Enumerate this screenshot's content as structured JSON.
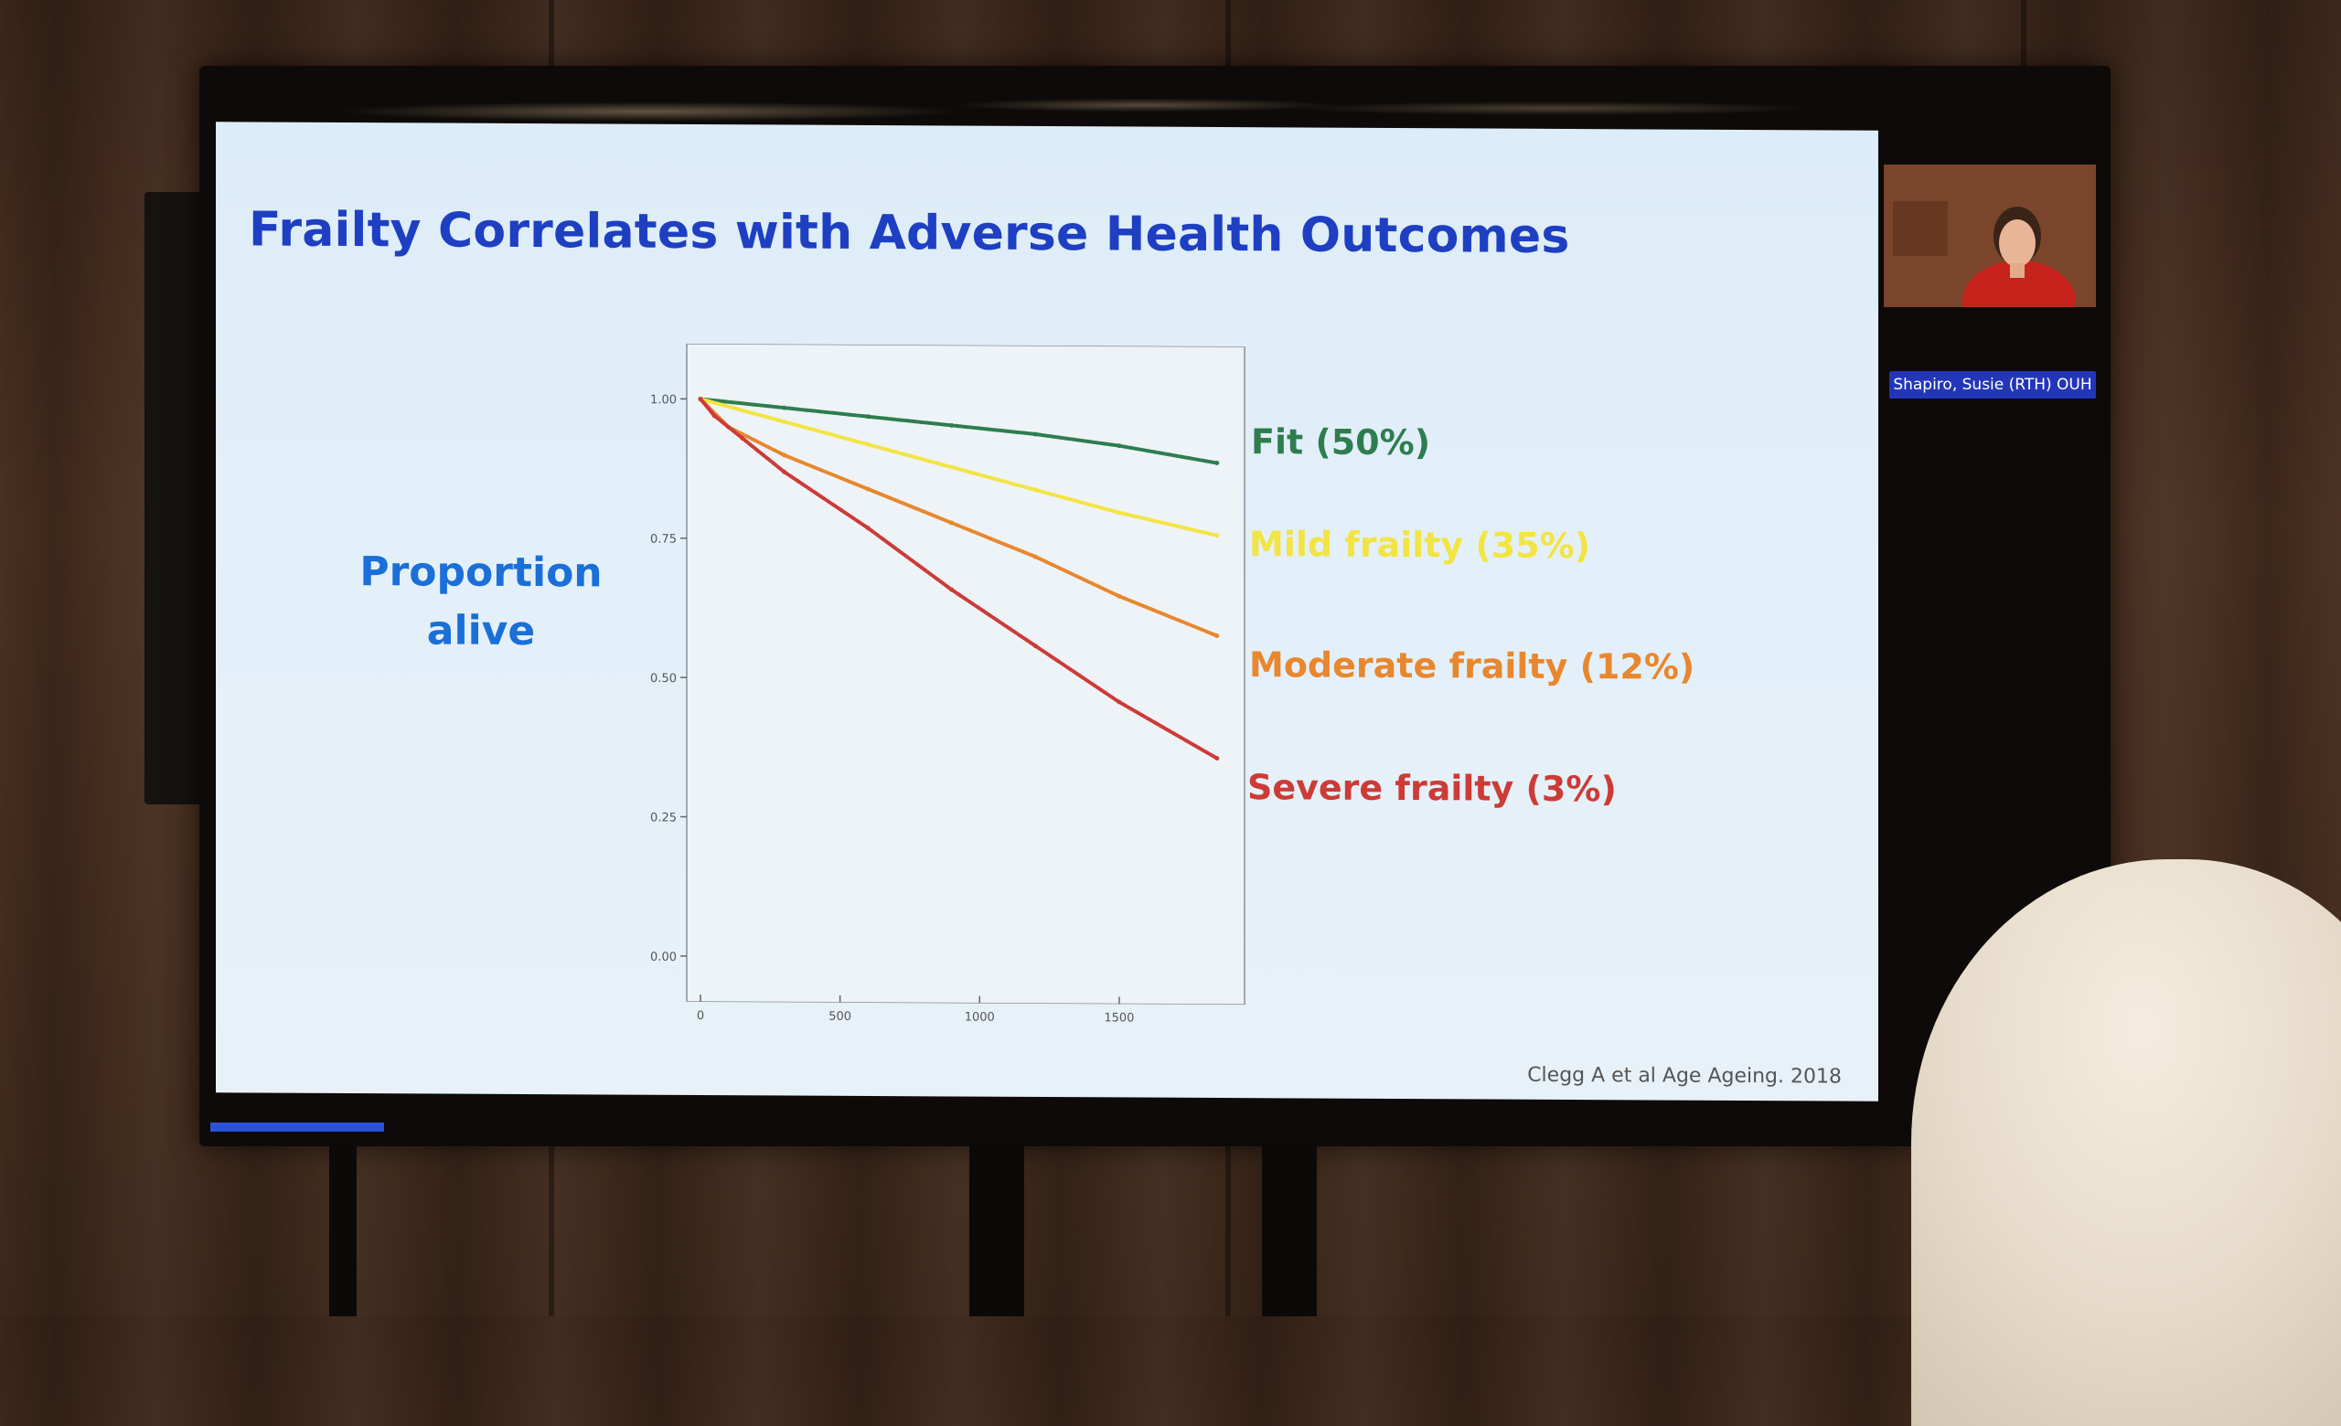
{
  "slide": {
    "title": "Frailty Correlates with Adverse Health Outcomes",
    "ylabel_line1": "Proportion",
    "ylabel_line2": "alive",
    "citation": "Clegg A et al Age Ageing. 2018"
  },
  "participant": {
    "name": "Shapiro, Susie (RTH) OUH"
  },
  "colors": {
    "title": "#1e3fc2",
    "fit": "#2e7d4f",
    "mild": "#f2e443",
    "moderate": "#e8872d",
    "severe": "#cc3b36"
  },
  "chart_data": {
    "type": "line",
    "title": "",
    "xlabel": "",
    "ylabel": "Proportion alive",
    "xlim": [
      0,
      1900
    ],
    "ylim": [
      0,
      1.05
    ],
    "x_ticks": [
      "0",
      "500",
      "1000",
      "1500"
    ],
    "y_ticks": [
      "0.00",
      "0.25",
      "0.50",
      "0.75",
      "1.00"
    ],
    "grid": false,
    "legend": "right",
    "series": [
      {
        "name": "Fit (50%)",
        "color": "#2e7d4f",
        "x": [
          0,
          300,
          600,
          900,
          1200,
          1500,
          1850
        ],
        "y": [
          1.0,
          0.985,
          0.97,
          0.955,
          0.94,
          0.92,
          0.89
        ]
      },
      {
        "name": "Mild frailty (35%)",
        "color": "#f2e443",
        "x": [
          0,
          300,
          600,
          900,
          1200,
          1500,
          1850
        ],
        "y": [
          1.0,
          0.96,
          0.92,
          0.88,
          0.84,
          0.8,
          0.76
        ]
      },
      {
        "name": "Moderate frailty (12%)",
        "color": "#e8872d",
        "x": [
          0,
          100,
          300,
          600,
          900,
          1200,
          1500,
          1850
        ],
        "y": [
          1.0,
          0.95,
          0.9,
          0.84,
          0.78,
          0.72,
          0.65,
          0.58
        ]
      },
      {
        "name": "Severe frailty (3%)",
        "color": "#cc3b36",
        "x": [
          0,
          50,
          150,
          300,
          600,
          900,
          1200,
          1500,
          1850
        ],
        "y": [
          1.0,
          0.97,
          0.93,
          0.87,
          0.77,
          0.66,
          0.56,
          0.46,
          0.36
        ]
      }
    ]
  }
}
